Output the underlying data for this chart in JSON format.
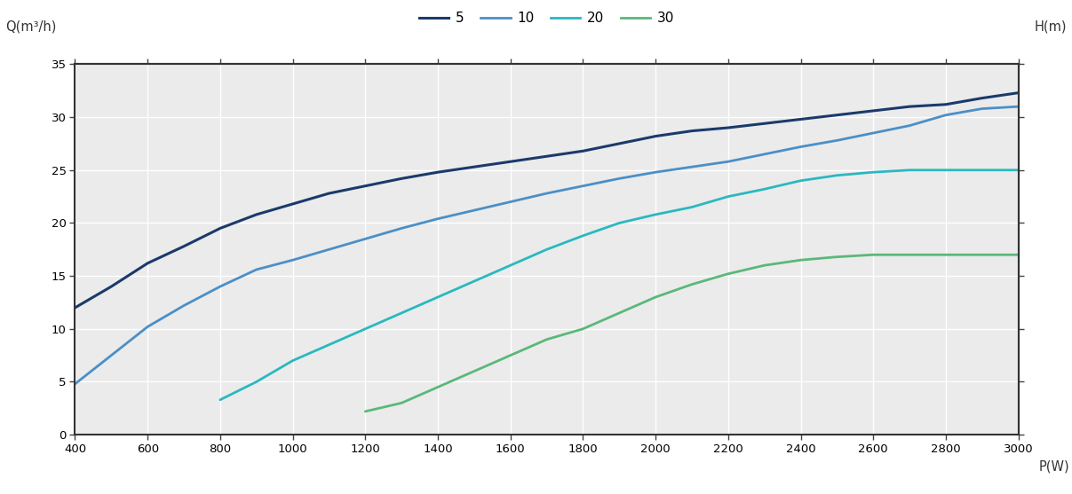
{
  "xlabel": "P(W)",
  "ylabel": "Q(m³/h)",
  "ylabel_right": "H(m)",
  "xlim": [
    400,
    3000
  ],
  "ylim": [
    0,
    35
  ],
  "xticks": [
    400,
    600,
    800,
    1000,
    1200,
    1400,
    1600,
    1800,
    2000,
    2200,
    2400,
    2600,
    2800,
    3000
  ],
  "yticks": [
    0,
    5,
    10,
    15,
    20,
    25,
    30,
    35
  ],
  "plot_bg_color": "#ebebeb",
  "grid_color": "#ffffff",
  "series": [
    {
      "label": "5",
      "color": "#1b3a6b",
      "linewidth": 2.2,
      "x": [
        400,
        500,
        600,
        700,
        800,
        900,
        1000,
        1100,
        1200,
        1300,
        1400,
        1500,
        1600,
        1700,
        1800,
        1900,
        2000,
        2100,
        2200,
        2300,
        2400,
        2500,
        2600,
        2700,
        2800,
        2900,
        3000
      ],
      "y": [
        12.0,
        14.0,
        16.2,
        17.8,
        19.5,
        20.8,
        21.8,
        22.8,
        23.5,
        24.2,
        24.8,
        25.3,
        25.8,
        26.3,
        26.8,
        27.5,
        28.2,
        28.7,
        29.0,
        29.4,
        29.8,
        30.2,
        30.6,
        31.0,
        31.2,
        31.8,
        32.3
      ]
    },
    {
      "label": "10",
      "color": "#4a8fc7",
      "linewidth": 2.0,
      "x": [
        400,
        500,
        600,
        700,
        800,
        900,
        1000,
        1100,
        1200,
        1300,
        1400,
        1500,
        1600,
        1700,
        1800,
        1900,
        2000,
        2100,
        2200,
        2300,
        2400,
        2500,
        2600,
        2700,
        2800,
        2900,
        3000
      ],
      "y": [
        4.8,
        7.5,
        10.2,
        12.2,
        14.0,
        15.6,
        16.5,
        17.5,
        18.5,
        19.5,
        20.4,
        21.2,
        22.0,
        22.8,
        23.5,
        24.2,
        24.8,
        25.3,
        25.8,
        26.5,
        27.2,
        27.8,
        28.5,
        29.2,
        30.2,
        30.8,
        31.0
      ]
    },
    {
      "label": "20",
      "color": "#2ab8c0",
      "linewidth": 2.0,
      "x": [
        800,
        900,
        1000,
        1100,
        1200,
        1300,
        1400,
        1500,
        1600,
        1700,
        1800,
        1900,
        2000,
        2100,
        2200,
        2300,
        2400,
        2500,
        2600,
        2700,
        2800,
        2900,
        3000
      ],
      "y": [
        3.3,
        5.0,
        7.0,
        8.5,
        10.0,
        11.5,
        13.0,
        14.5,
        16.0,
        17.5,
        18.8,
        20.0,
        20.8,
        21.5,
        22.5,
        23.2,
        24.0,
        24.5,
        24.8,
        25.0,
        25.0,
        25.0,
        25.0
      ]
    },
    {
      "label": "30",
      "color": "#5ab87a",
      "linewidth": 2.0,
      "x": [
        1200,
        1300,
        1400,
        1500,
        1600,
        1700,
        1800,
        1900,
        2000,
        2100,
        2200,
        2300,
        2400,
        2500,
        2600,
        2700,
        2800,
        2900,
        3000
      ],
      "y": [
        2.2,
        3.0,
        4.5,
        6.0,
        7.5,
        9.0,
        10.0,
        11.5,
        13.0,
        14.2,
        15.2,
        16.0,
        16.5,
        16.8,
        17.0,
        17.0,
        17.0,
        17.0,
        17.0
      ]
    }
  ],
  "legend_colors": [
    "#1b3a6b",
    "#4a8fc7",
    "#2ab8c0",
    "#5ab87a"
  ],
  "legend_labels": [
    "5",
    "10",
    "20",
    "30"
  ]
}
